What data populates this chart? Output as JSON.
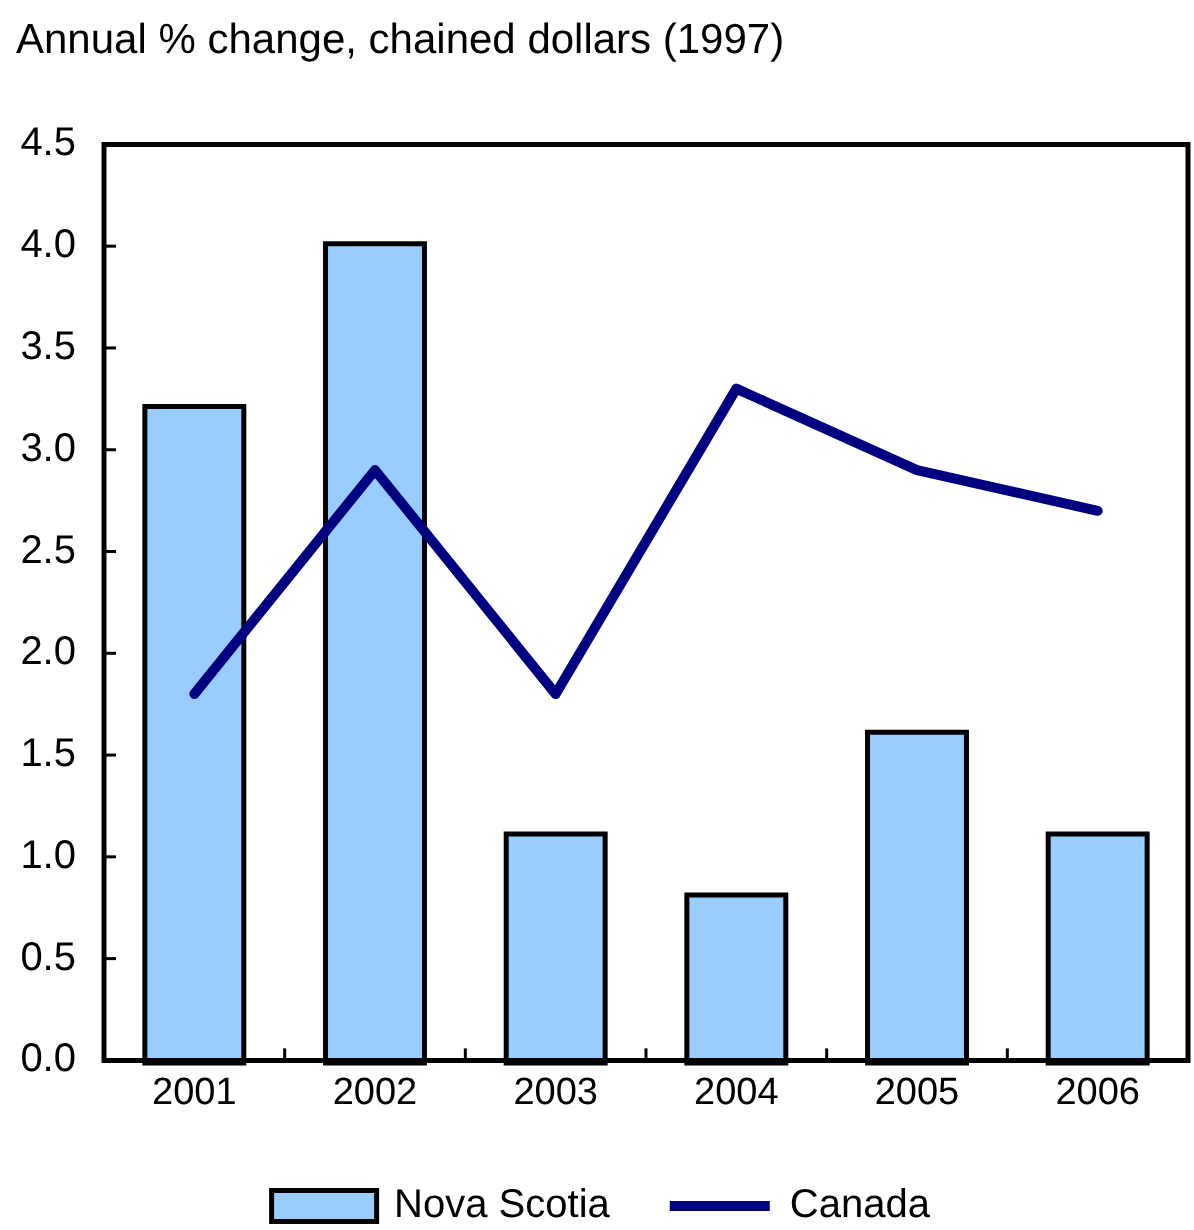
{
  "chart_data": {
    "type": "bar",
    "title": "Annual % change, chained dollars (1997)",
    "categories": [
      "2001",
      "2002",
      "2003",
      "2004",
      "2005",
      "2006"
    ],
    "series": [
      {
        "name": "Nova Scotia",
        "color": "#99ccff",
        "values": [
          3.2,
          4.0,
          1.1,
          0.8,
          1.6,
          1.1
        ]
      },
      {
        "name": "Canada",
        "type": "line",
        "color": "#000080",
        "values": [
          1.8,
          2.9,
          1.8,
          3.3,
          2.9,
          2.7
        ]
      }
    ],
    "ylim": [
      0,
      4.5
    ],
    "yticks": [
      {
        "value": 0,
        "label": "0.0"
      },
      0.5,
      {
        "value": 1,
        "label": "1.0"
      },
      1.5,
      {
        "value": 2,
        "label": "2.0"
      },
      2.5,
      {
        "value": 3,
        "label": "3.0"
      },
      3.5,
      {
        "value": 4,
        "label": "4.0"
      },
      4.5
    ],
    "grid": false,
    "legend": "bottom"
  }
}
